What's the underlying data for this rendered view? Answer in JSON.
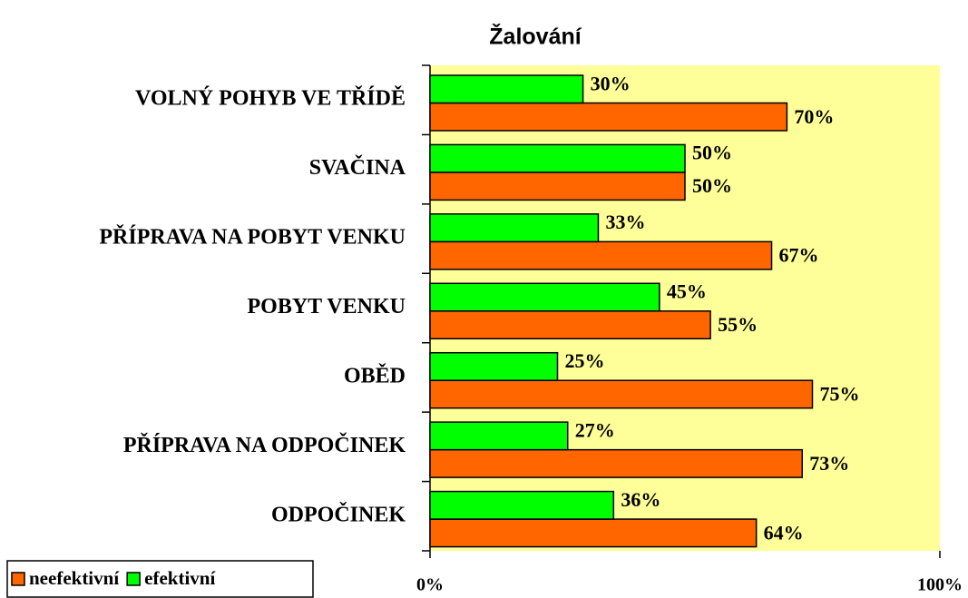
{
  "chart_data": {
    "type": "barh",
    "title": "Žalování",
    "categories": [
      "VOLNÝ POHYB VE TŘÍDĚ",
      "SVAČINA",
      "PŘÍPRAVA NA POBYT VENKU",
      "POBYT VENKU",
      "OBĚD",
      "PŘÍPRAVA NA ODPOČINEK",
      "ODPOČINEK"
    ],
    "series": [
      {
        "name": "neefektivní",
        "color": "#ff6600",
        "values": [
          70,
          50,
          67,
          55,
          75,
          73,
          64
        ],
        "value_labels": [
          "70%",
          "50%",
          "67%",
          "55%",
          "75%",
          "73%",
          "64%"
        ]
      },
      {
        "name": "efektivní",
        "color": "#00ff00",
        "values": [
          30,
          50,
          33,
          45,
          25,
          27,
          36
        ],
        "value_labels": [
          "30%",
          "50%",
          "33%",
          "45%",
          "25%",
          "27%",
          "36%"
        ]
      }
    ],
    "xlim": [
      0,
      100
    ],
    "xticks": [
      {
        "value": 0,
        "label": "0%"
      },
      {
        "value": 100,
        "label": "100%"
      }
    ],
    "plot_background": "#ffff99",
    "legend": "bottom-left"
  }
}
